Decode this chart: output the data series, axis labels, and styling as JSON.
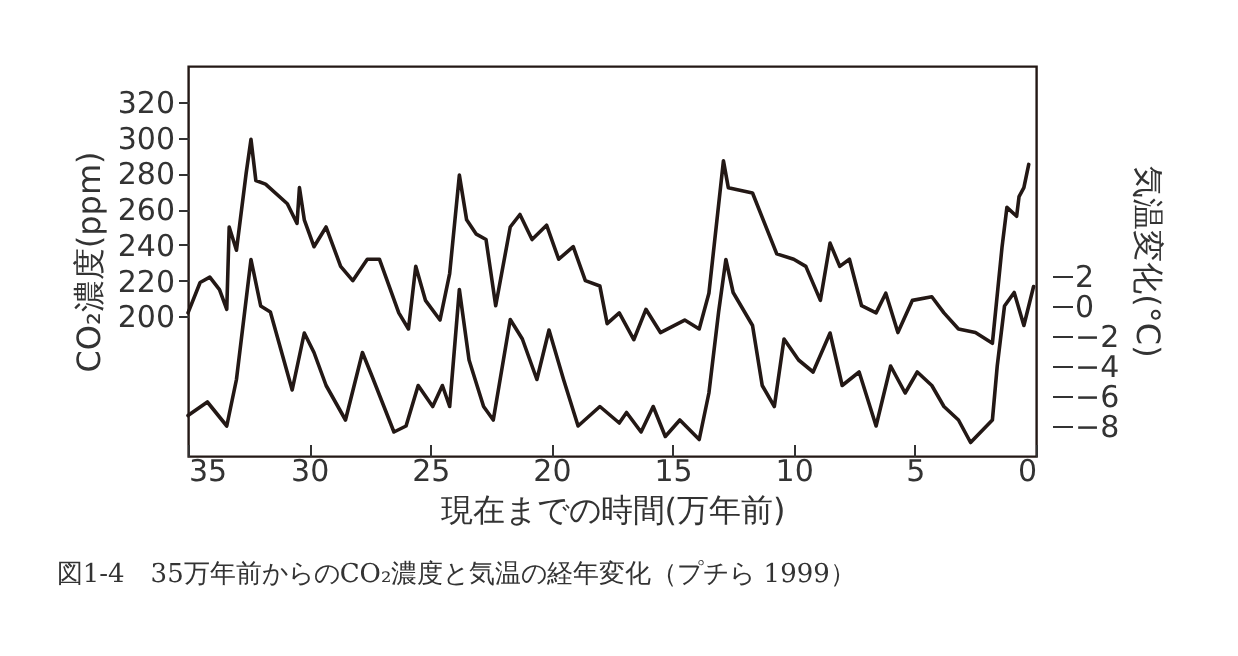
{
  "chart_data": {
    "type": "line",
    "xlabel": "現在までの時間(万年前)",
    "ylabel": "CO₂濃度(ppm)",
    "y2label": "気温変化(°C)",
    "annotations": [
      "図1-4　35万年前からのCO₂濃度と気温の経年変化（プチら 1999）"
    ],
    "xlim": [
      35,
      0
    ],
    "xticks": [
      35,
      30,
      25,
      20,
      15,
      10,
      5,
      0
    ],
    "ylim": [
      122,
      340
    ],
    "yticks": [
      200,
      220,
      240,
      260,
      280,
      300,
      320
    ],
    "y2lim": [
      -10,
      16
    ],
    "y2ticks": [
      2,
      0,
      -2,
      -4,
      -6,
      -8
    ],
    "grid": false,
    "marker": "none",
    "line_style": "solid",
    "series": [
      {
        "color": "#231815",
        "x": [
          35,
          34.5,
          34.1,
          33.7,
          33.4,
          33.3,
          33.0,
          32.6,
          32.4,
          32.2,
          31.8,
          30.9,
          30.5,
          30.4,
          30.2,
          29.8,
          29.3,
          28.7,
          28.2,
          27.6,
          27.1,
          26.3,
          25.9,
          25.6,
          25.2,
          24.6,
          24.2,
          23.8,
          23.5,
          23.1,
          22.7,
          22.3,
          21.7,
          21.3,
          20.8,
          20.2,
          19.7,
          19.1,
          18.6,
          18.0,
          17.7,
          17.2,
          16.6,
          16.1,
          15.5,
          14.5,
          13.9,
          13.5,
          12.9,
          12.7,
          11.7,
          10.7,
          10.0,
          9.5,
          8.9,
          8.5,
          8.1,
          7.7,
          7.2,
          6.6,
          6.2,
          5.7,
          5.1,
          4.3,
          3.8,
          3.2,
          2.5,
          1.8,
          1.4,
          1.2,
          0.8,
          0.7,
          0.5,
          0.3
        ],
        "values": [
          202,
          219,
          222,
          215,
          204,
          250,
          237,
          280,
          299,
          276,
          274,
          263,
          252,
          272,
          254,
          239,
          250,
          228,
          220,
          232,
          232,
          202,
          193,
          228,
          209,
          198,
          224,
          279,
          254,
          246,
          243,
          206,
          250,
          257,
          243,
          251,
          232,
          239,
          220,
          217,
          196,
          202,
          187,
          204,
          191,
          198,
          193,
          213,
          287,
          272,
          269,
          235,
          232,
          228,
          209,
          241,
          228,
          232,
          206,
          202,
          213,
          191,
          209,
          211,
          202,
          193,
          191,
          185,
          239,
          261,
          256,
          267,
          272,
          285
        ]
      },
      {
        "color": "#231815",
        "axis": "y2",
        "x": [
          35,
          34.2,
          33.4,
          33.0,
          32.4,
          32.0,
          31.6,
          30.7,
          30.2,
          29.8,
          29.3,
          28.5,
          27.8,
          27.4,
          26.5,
          26.0,
          25.5,
          24.9,
          24.5,
          24.2,
          23.8,
          23.4,
          22.8,
          22.4,
          21.7,
          21.2,
          20.6,
          20.1,
          19.5,
          18.9,
          18.0,
          17.2,
          16.9,
          16.3,
          15.8,
          15.3,
          14.7,
          13.9,
          13.5,
          13.1,
          12.8,
          12.5,
          11.7,
          11.3,
          10.8,
          10.4,
          9.8,
          9.2,
          8.5,
          8.0,
          7.3,
          6.6,
          6.0,
          5.4,
          4.9,
          4.3,
          3.8,
          3.2,
          2.7,
          1.8,
          1.6,
          1.3,
          0.9,
          0.5,
          0.1
        ],
        "values": [
          -7.3,
          -6.4,
          -8.0,
          -4.9,
          3.1,
          0,
          -0.4,
          -5.6,
          -1.8,
          -3.1,
          -5.3,
          -7.6,
          -3.1,
          -4.7,
          -8.4,
          -8.0,
          -5.3,
          -6.7,
          -5.3,
          -6.7,
          1.1,
          -3.6,
          -6.7,
          -7.6,
          -0.9,
          -2.2,
          -4.9,
          -1.6,
          -4.9,
          -8.0,
          -6.7,
          -7.8,
          -7.1,
          -8.4,
          -6.7,
          -8.7,
          -7.6,
          -8.9,
          -5.8,
          -0.4,
          3.1,
          0.9,
          -1.3,
          -5.3,
          -6.7,
          -2.2,
          -3.6,
          -4.4,
          -1.8,
          -5.3,
          -4.4,
          -8.0,
          -4.0,
          -5.8,
          -4.4,
          -5.3,
          -6.7,
          -7.6,
          -9.1,
          -7.6,
          -4.0,
          0,
          0.9,
          -1.3,
          1.3
        ]
      }
    ]
  }
}
